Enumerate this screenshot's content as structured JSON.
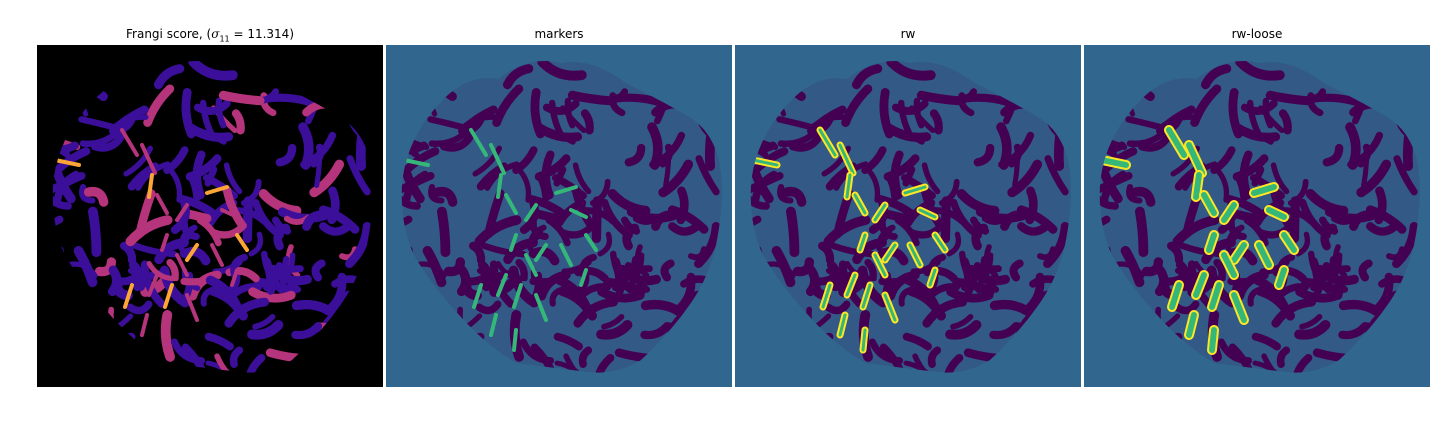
{
  "panels": [
    {
      "id": "frangi",
      "title_prefix": "Frangi score, (",
      "title_symbol": "σ",
      "title_subscript": "11",
      "title_suffix": " = 11.314)"
    },
    {
      "id": "markers",
      "title": "markers"
    },
    {
      "id": "rw",
      "title": "rw"
    },
    {
      "id": "rw-loose",
      "title": "rw-loose"
    }
  ],
  "colors": {
    "frangi_background": "#000000",
    "frangi_low": "#3b0f9a",
    "frangi_mid": "#b5347b",
    "frangi_high": "#fca636",
    "label_background": "#31668e",
    "label_tissue": "#440154",
    "label_marker": "#35b779",
    "label_vessel": "#fde725"
  }
}
